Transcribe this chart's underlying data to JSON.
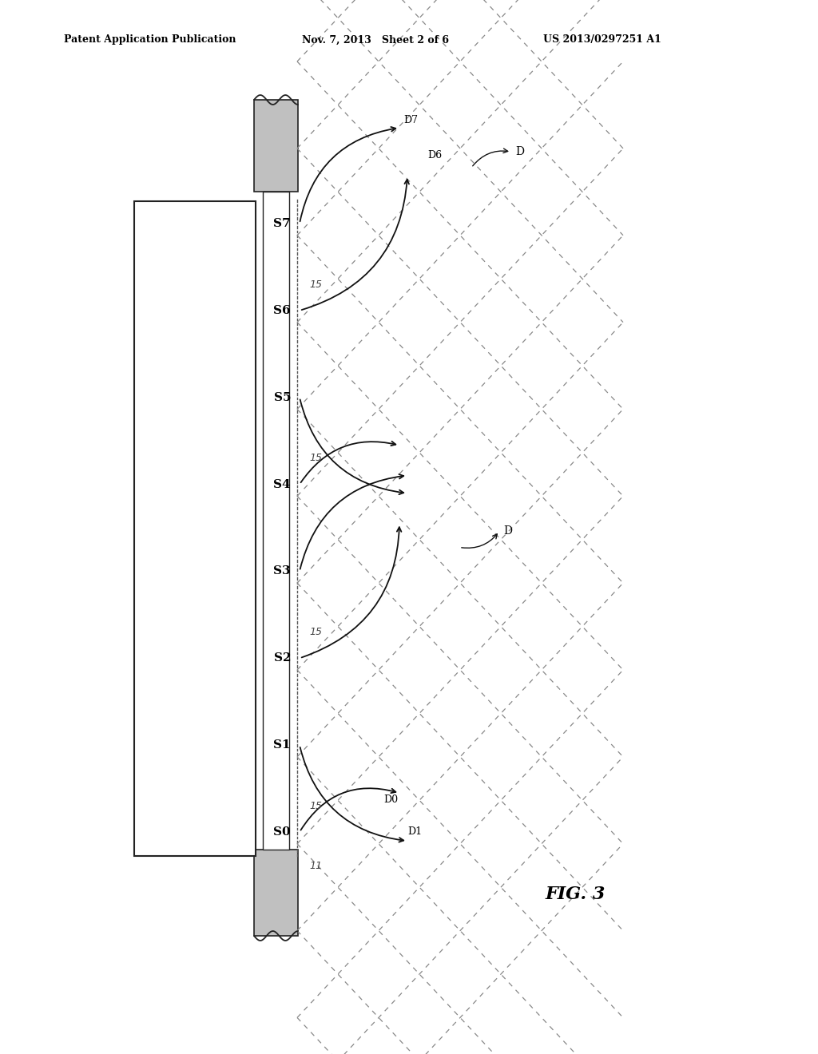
{
  "title_left": "Patent Application Publication",
  "title_center": "Nov. 7, 2013   Sheet 2 of 6",
  "title_right": "US 2013/0297251 A1",
  "fig_label": "FIG. 3",
  "sensors": [
    "S7",
    "S6",
    "S5",
    "S4",
    "S3",
    "S2",
    "S1",
    "S0"
  ],
  "background_color": "#ffffff",
  "line_color": "#222222",
  "gray_fill": "#c0c0c0",
  "dashed_color": "#888888",
  "arrow_color": "#111111"
}
